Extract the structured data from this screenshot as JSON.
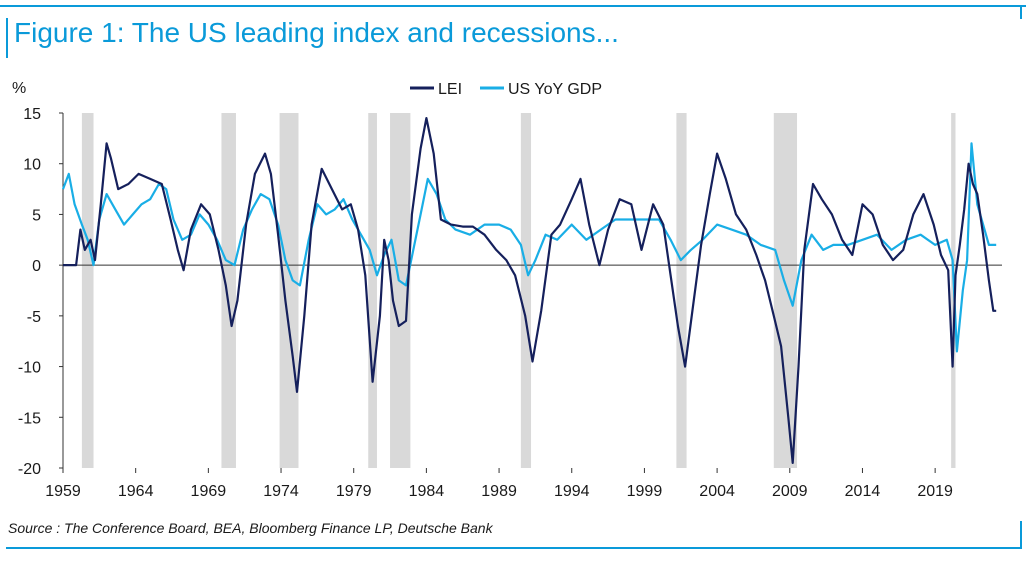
{
  "title": "Figure 1: The US leading index and recessions...",
  "source": "Source : The Conference Board, BEA, Bloomberg Finance LP, Deutsche Bank",
  "colors": {
    "lei": "#15205c",
    "gdp": "#19aee6",
    "recession": "#d9d9d9",
    "accent": "#0a9ad9"
  },
  "chart_data": {
    "type": "line",
    "title": "Figure 1: The US leading index and recessions...",
    "ylabel": "%",
    "xlabel": "",
    "xlim": [
      1959,
      2023.6
    ],
    "ylim": [
      -20,
      15
    ],
    "x_ticks": [
      "1959",
      "1964",
      "1969",
      "1974",
      "1979",
      "1984",
      "1989",
      "1994",
      "1999",
      "2004",
      "2009",
      "2014",
      "2019"
    ],
    "y_ticks": [
      "15",
      "10",
      "5",
      "0",
      "-5",
      "-10",
      "-15",
      "-20"
    ],
    "legend": [
      "LEI",
      "US YoY GDP"
    ],
    "legend_position": "top-center",
    "grid": false,
    "recessions": [
      [
        1960.3,
        1961.1
      ],
      [
        1969.9,
        1970.9
      ],
      [
        1973.9,
        1975.2
      ],
      [
        1980.0,
        1980.6
      ],
      [
        1981.5,
        1982.9
      ],
      [
        1990.5,
        1991.2
      ],
      [
        2001.2,
        2001.9
      ],
      [
        2007.9,
        2009.5
      ],
      [
        2020.1,
        2020.4
      ]
    ],
    "series": [
      {
        "name": "LEI",
        "x": [
          1959.0,
          1959.9,
          1960.2,
          1960.5,
          1960.9,
          1961.2,
          1961.6,
          1962.0,
          1962.3,
          1962.8,
          1963.5,
          1964.2,
          1965.0,
          1965.8,
          1966.4,
          1966.9,
          1967.3,
          1967.8,
          1968.5,
          1969.1,
          1969.7,
          1970.2,
          1970.6,
          1971.0,
          1971.6,
          1972.2,
          1972.9,
          1973.3,
          1973.8,
          1974.3,
          1974.8,
          1975.1,
          1975.6,
          1976.1,
          1976.8,
          1977.5,
          1978.2,
          1978.8,
          1979.3,
          1979.8,
          1980.3,
          1980.8,
          1981.1,
          1981.4,
          1981.7,
          1982.1,
          1982.6,
          1983.0,
          1983.6,
          1984.0,
          1984.5,
          1985.0,
          1985.7,
          1986.5,
          1987.2,
          1988.0,
          1988.8,
          1989.5,
          1990.1,
          1990.8,
          1991.3,
          1991.9,
          1992.6,
          1993.2,
          1994.0,
          1994.6,
          1995.2,
          1995.9,
          1996.5,
          1997.3,
          1998.1,
          1998.8,
          1999.6,
          2000.3,
          2000.8,
          2001.3,
          2001.8,
          2002.3,
          2002.9,
          2003.5,
          2004.0,
          2004.6,
          2005.3,
          2006.0,
          2006.7,
          2007.3,
          2007.9,
          2008.4,
          2008.9,
          2009.2,
          2009.6,
          2010.0,
          2010.6,
          2011.2,
          2011.9,
          2012.6,
          2013.3,
          2014.0,
          2014.7,
          2015.4,
          2016.1,
          2016.8,
          2017.5,
          2018.2,
          2018.9,
          2019.4,
          2019.9,
          2020.2,
          2020.4,
          2020.7,
          2021.0,
          2021.3,
          2021.6,
          2021.9,
          2022.3,
          2022.7,
          2023.0,
          2023.2
        ],
        "values": [
          0,
          0,
          3.5,
          1.5,
          2.5,
          0.5,
          6.0,
          12.0,
          10.5,
          7.5,
          8.0,
          9.0,
          8.5,
          8.0,
          4.5,
          1.5,
          -0.5,
          3.5,
          6.0,
          5.0,
          1.5,
          -2.0,
          -6.0,
          -3.5,
          4.0,
          9.0,
          11.0,
          9.0,
          3.0,
          -3.5,
          -9.0,
          -12.5,
          -5.0,
          4.0,
          9.5,
          7.5,
          5.5,
          6.0,
          3.5,
          -1.0,
          -11.5,
          -5.0,
          2.5,
          0.5,
          -3.5,
          -6.0,
          -5.5,
          5.0,
          11.5,
          14.5,
          11.0,
          4.5,
          4.0,
          3.8,
          3.8,
          3.0,
          1.5,
          0.5,
          -1.0,
          -5.0,
          -9.5,
          -4.5,
          3.0,
          4.0,
          6.5,
          8.5,
          4.0,
          0.0,
          3.5,
          6.5,
          6.0,
          1.5,
          6.0,
          4.0,
          -1.0,
          -6.0,
          -10.0,
          -4.5,
          2.0,
          7.0,
          11.0,
          8.5,
          5.0,
          3.5,
          1.0,
          -1.5,
          -5.0,
          -8.0,
          -15.0,
          -19.5,
          -10.0,
          1.5,
          8.0,
          6.5,
          5.0,
          2.5,
          1.0,
          6.0,
          5.0,
          2.0,
          0.5,
          1.5,
          5.0,
          7.0,
          4.0,
          1.0,
          -0.5,
          -10.0,
          -1.0,
          2.0,
          5.5,
          10.0,
          8.0,
          7.0,
          3.0,
          -1.5,
          -4.5,
          -4.5
        ]
      },
      {
        "name": "US YoY GDP",
        "x": [
          1959.0,
          1959.4,
          1959.8,
          1960.3,
          1960.7,
          1961.1,
          1961.5,
          1962.0,
          1962.6,
          1963.2,
          1963.8,
          1964.4,
          1965.0,
          1965.6,
          1966.1,
          1966.6,
          1967.2,
          1967.8,
          1968.4,
          1969.0,
          1969.6,
          1970.2,
          1970.8,
          1971.4,
          1972.0,
          1972.6,
          1973.2,
          1973.8,
          1974.3,
          1974.8,
          1975.3,
          1975.9,
          1976.5,
          1977.1,
          1977.7,
          1978.3,
          1978.9,
          1979.5,
          1980.1,
          1980.6,
          1981.1,
          1981.6,
          1982.1,
          1982.6,
          1983.1,
          1983.6,
          1984.1,
          1984.7,
          1985.3,
          1986.0,
          1987.0,
          1988.0,
          1989.0,
          1989.8,
          1990.5,
          1991.0,
          1991.5,
          1992.2,
          1993.0,
          1994.0,
          1995.0,
          1996.0,
          1997.0,
          1998.0,
          1999.0,
          2000.0,
          2000.8,
          2001.5,
          2002.2,
          2003.0,
          2004.0,
          2005.0,
          2006.0,
          2007.0,
          2008.0,
          2008.6,
          2009.2,
          2009.8,
          2010.5,
          2011.3,
          2012.0,
          2013.0,
          2014.0,
          2015.0,
          2016.0,
          2017.0,
          2018.0,
          2019.0,
          2019.8,
          2020.2,
          2020.5,
          2020.9,
          2021.2,
          2021.5,
          2021.9,
          2022.3,
          2022.7,
          2023.2
        ],
        "values": [
          7.5,
          9.0,
          6.0,
          4.0,
          2.5,
          0.0,
          4.5,
          7.0,
          5.5,
          4.0,
          5.0,
          6.0,
          6.5,
          8.0,
          7.5,
          4.5,
          2.5,
          3.0,
          5.0,
          4.0,
          2.5,
          0.5,
          0.0,
          3.5,
          5.5,
          7.0,
          6.5,
          4.0,
          0.5,
          -1.5,
          -2.0,
          2.5,
          6.0,
          5.0,
          5.5,
          6.5,
          4.5,
          3.0,
          1.5,
          -1.0,
          1.0,
          2.5,
          -1.5,
          -2.0,
          1.5,
          5.0,
          8.5,
          7.0,
          4.5,
          3.5,
          3.0,
          4.0,
          4.0,
          3.5,
          2.0,
          -1.0,
          0.5,
          3.0,
          2.5,
          4.0,
          2.5,
          3.5,
          4.5,
          4.5,
          4.5,
          4.5,
          2.5,
          0.5,
          1.5,
          2.5,
          4.0,
          3.5,
          3.0,
          2.0,
          1.5,
          -1.5,
          -4.0,
          0.5,
          3.0,
          1.5,
          2.0,
          2.0,
          2.5,
          3.0,
          1.5,
          2.5,
          3.0,
          2.0,
          2.5,
          0.5,
          -8.5,
          -2.5,
          0.5,
          12.0,
          6.0,
          4.0,
          2.0,
          2.0
        ]
      }
    ]
  }
}
